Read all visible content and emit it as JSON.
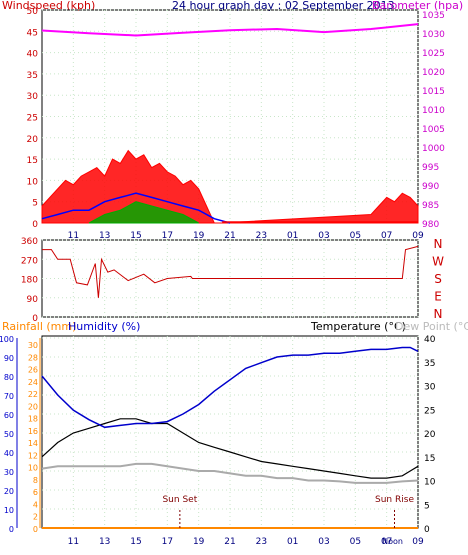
{
  "chart_data": [
    {
      "type": "line",
      "title": "24 hour graph day : 02 September 2013",
      "left_axis_label": "Windspeed (kph)",
      "right_axis_label": "Barometer (hpa)",
      "left_ticks": [
        0,
        5,
        10,
        15,
        20,
        25,
        30,
        35,
        40,
        45,
        50
      ],
      "right_ticks": [
        980,
        985,
        990,
        995,
        1000,
        1005,
        1010,
        1015,
        1020,
        1025,
        1030,
        1035
      ],
      "ylim_left": [
        0,
        50
      ],
      "ylim_right": [
        980,
        1036
      ],
      "x_tick_labels": [
        "11",
        "13",
        "15",
        "17",
        "19",
        "21",
        "23",
        "01",
        "03",
        "05",
        "07",
        "09"
      ],
      "x_hours": [
        9,
        33
      ],
      "colors": {
        "gust": "#ff0000",
        "average": "#0000ff",
        "lull": "#00aa00",
        "barometer": "#ff00ff"
      },
      "barometer": {
        "x": [
          9,
          12,
          15,
          18,
          21,
          24,
          27,
          30,
          33
        ],
        "y": [
          1030.6,
          1029.9,
          1029.3,
          1030.0,
          1030.7,
          1031.0,
          1030.2,
          1031.0,
          1032.3
        ]
      },
      "wind_gust": {
        "x": [
          9,
          9.5,
          10,
          10.5,
          11,
          11.5,
          12,
          12.5,
          13,
          13.5,
          14,
          14.5,
          15,
          15.5,
          16,
          16.5,
          17,
          17.5,
          18,
          18.5,
          19,
          19.5,
          20,
          20.5,
          30,
          30.5,
          31,
          31.5,
          32,
          32.5,
          33
        ],
        "y": [
          4,
          6,
          8,
          10,
          9,
          11,
          12,
          13,
          11,
          15,
          14,
          17,
          15,
          16,
          13,
          14,
          12,
          11,
          9,
          10,
          8,
          4,
          0,
          0,
          2,
          4,
          6,
          5,
          7,
          6,
          4
        ]
      },
      "wind_average": {
        "x": [
          9,
          10,
          11,
          12,
          13,
          14,
          15,
          16,
          17,
          18,
          19,
          20,
          21
        ],
        "y": [
          1,
          2,
          3,
          3,
          5,
          6,
          7,
          6,
          5,
          4,
          3,
          1,
          0
        ]
      },
      "wind_lull": {
        "x": [
          12,
          13,
          14,
          15,
          16,
          17,
          18,
          19
        ],
        "y": [
          0,
          2,
          3,
          5,
          4,
          3,
          2,
          0
        ]
      }
    },
    {
      "type": "line",
      "left_ticks": [
        "360",
        "270",
        "180",
        "90",
        "0"
      ],
      "right_labels": [
        "N",
        "W",
        "S",
        "E",
        "N"
      ],
      "ylim": [
        0,
        360
      ],
      "color": "#cc0000",
      "wind_direction": {
        "x": [
          9,
          9.6,
          10.0,
          10.8,
          11.2,
          11.9,
          12.4,
          12.6,
          12.8,
          13.2,
          13.6,
          14.5,
          15.5,
          16.2,
          17.0,
          18.5,
          18.6,
          32.0,
          32.2,
          33.0
        ],
        "y": [
          315,
          315,
          270,
          270,
          160,
          150,
          250,
          90,
          270,
          210,
          220,
          170,
          200,
          160,
          180,
          190,
          180,
          180,
          315,
          330
        ]
      }
    },
    {
      "type": "line",
      "rainfall_label": "Rainfall (mm)",
      "humidity_label": "Humidity (%)",
      "temperature_label": "Temperature (°C)",
      "dewpoint_label": "Dew Point (°C)",
      "humidity_ticks": [
        0,
        10,
        20,
        30,
        40,
        50,
        60,
        70,
        80,
        90,
        100
      ],
      "rainfall_ticks": [
        0,
        2,
        4,
        6,
        8,
        10,
        12,
        14,
        16,
        18,
        20,
        22,
        24,
        26,
        28,
        30
      ],
      "temperature_ticks": [
        0,
        5,
        10,
        15,
        20,
        25,
        30,
        35,
        40
      ],
      "ylim_temperature": [
        0,
        40
      ],
      "ylim_humidity": [
        0,
        100
      ],
      "sunset_label": "Sun Set",
      "sunrise_label": "Sun Rise",
      "noon_label": "Noon",
      "sunset_hour": 17.8,
      "sunrise_hour": 31.5,
      "colors": {
        "humidity": "#0000cc",
        "temperature": "#000000",
        "dewpoint": "#aaaaaa",
        "rainfall": "#ff8800"
      },
      "humidity": {
        "x": [
          9,
          10,
          11,
          12,
          13,
          14,
          15,
          16,
          17,
          18,
          19,
          20,
          21,
          22,
          23,
          24,
          25,
          26,
          27,
          28,
          29,
          30,
          31,
          32,
          32.5,
          33
        ],
        "y": [
          80,
          70,
          62,
          57,
          53,
          54,
          55,
          55,
          56,
          60,
          65,
          72,
          78,
          84,
          87,
          90,
          91,
          91,
          92,
          92,
          93,
          94,
          94,
          95,
          95,
          93
        ]
      },
      "temperature": {
        "x": [
          9,
          10,
          11,
          12,
          13,
          14,
          15,
          16,
          17,
          18,
          19,
          20,
          21,
          22,
          23,
          24,
          25,
          26,
          27,
          28,
          29,
          30,
          31,
          32,
          32.5,
          33
        ],
        "y": [
          15,
          18,
          20,
          21,
          22,
          23,
          23,
          22,
          22,
          20,
          18,
          17,
          16,
          15,
          14,
          13.5,
          13,
          12.5,
          12,
          11.5,
          11,
          10.5,
          10.5,
          11,
          12,
          13
        ]
      },
      "dewpoint": {
        "x": [
          9,
          10,
          11,
          12,
          13,
          14,
          15,
          16,
          17,
          18,
          19,
          20,
          21,
          22,
          23,
          24,
          25,
          26,
          27,
          28,
          29,
          30,
          31,
          32,
          33
        ],
        "y": [
          12.5,
          13,
          13,
          13,
          13,
          13,
          13.5,
          13.5,
          13,
          12.5,
          12,
          12,
          11.5,
          11,
          11,
          10.5,
          10.5,
          10,
          10,
          9.8,
          9.5,
          9.5,
          9.5,
          9.8,
          10
        ]
      },
      "rainfall": {
        "x": [
          9,
          33
        ],
        "y": [
          0,
          0
        ]
      }
    }
  ]
}
